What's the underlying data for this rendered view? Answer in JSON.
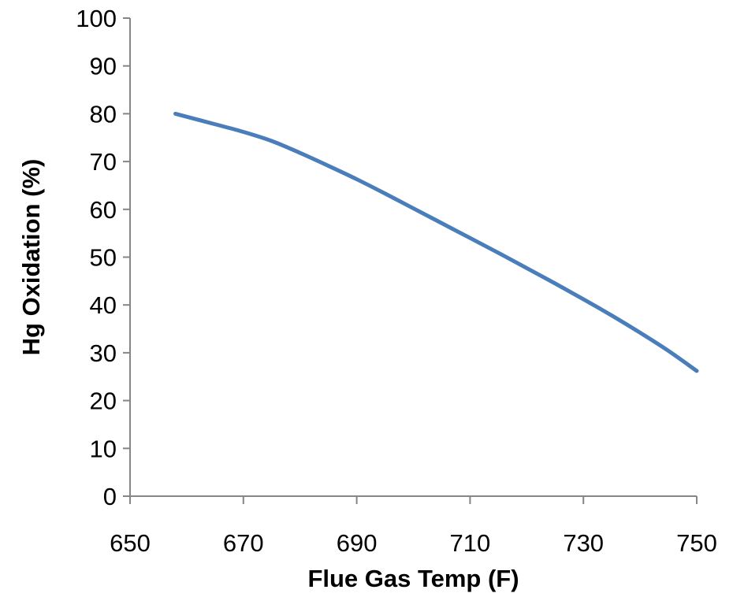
{
  "chart_data": {
    "type": "line",
    "xlabel": "Flue Gas Temp (F)",
    "ylabel": "Hg Oxidation (%)",
    "xlim": [
      650,
      750
    ],
    "ylim": [
      0,
      100
    ],
    "x_ticks": [
      "650",
      "670",
      "690",
      "710",
      "730",
      "750"
    ],
    "y_ticks": [
      "0",
      "10",
      "20",
      "30",
      "40",
      "50",
      "60",
      "70",
      "80",
      "90",
      "100"
    ],
    "grid": false,
    "legend": "none",
    "series": [
      {
        "color": "#4a7ebb",
        "x": [
          658,
          665,
          670,
          675,
          680,
          685,
          690,
          695,
          700,
          705,
          710,
          715,
          720,
          725,
          730,
          735,
          740,
          745,
          750
        ],
        "y": [
          80,
          77.8,
          76.2,
          74.3,
          71.8,
          69.1,
          66.3,
          63.3,
          60.2,
          57.1,
          54.0,
          50.9,
          47.7,
          44.5,
          41.2,
          37.8,
          34.2,
          30.4,
          26.2
        ]
      }
    ]
  }
}
